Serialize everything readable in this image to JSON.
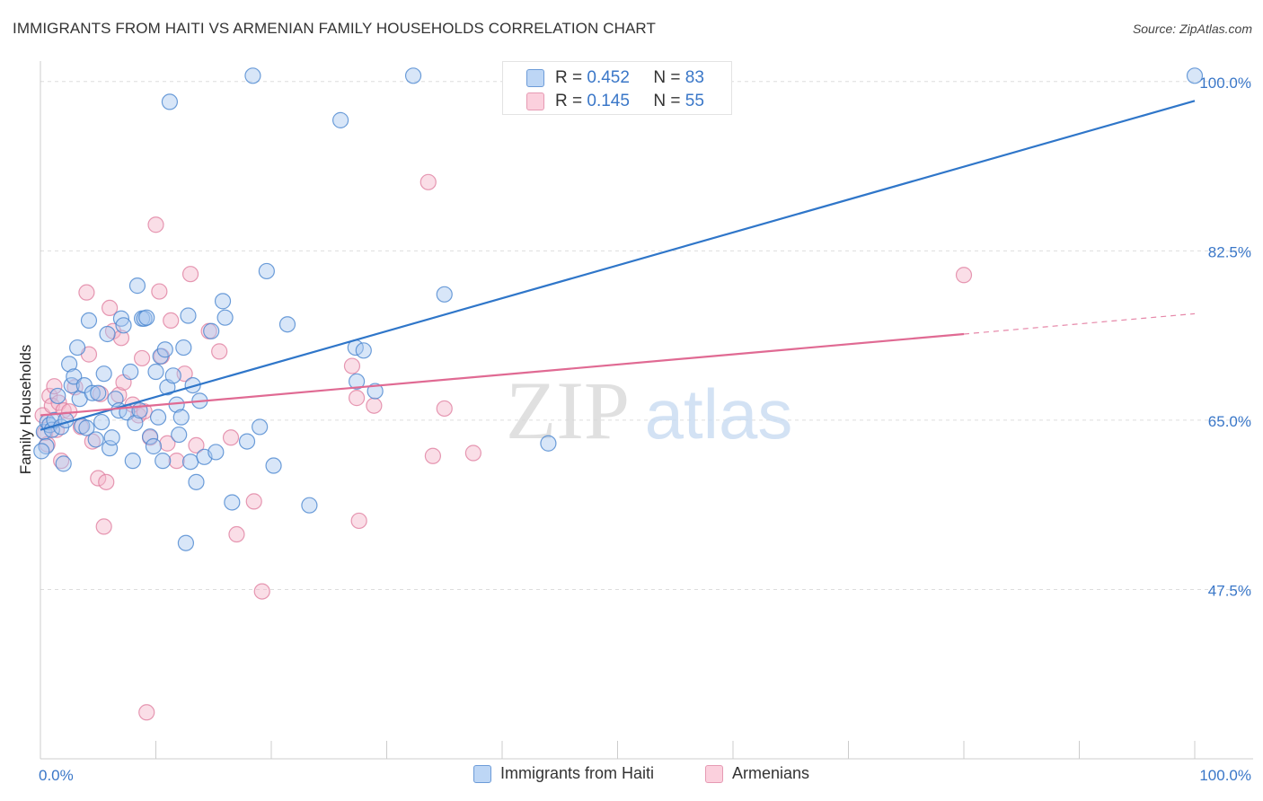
{
  "header": {
    "title": "IMMIGRANTS FROM HAITI VS ARMENIAN FAMILY HOUSEHOLDS CORRELATION CHART",
    "source": "Source: ZipAtlas.com"
  },
  "watermark": {
    "zip": "ZIP",
    "atlas": "atlas"
  },
  "legend": {
    "r_label": "R =",
    "n_label": "N =",
    "series": [
      {
        "r": "0.452",
        "n": "83"
      },
      {
        "r": "0.145",
        "n": "55"
      }
    ]
  },
  "colors": {
    "blue_fill": "#a8c8f0",
    "blue_stroke": "#4a86d0",
    "blue_line": "#2f76c9",
    "pink_fill": "#f5b6ca",
    "pink_stroke": "#e07fa0",
    "pink_line": "#e06a93",
    "grid": "#dddddd",
    "axis_text": "#3a77c8"
  },
  "chart_data": {
    "type": "scatter",
    "title": "IMMIGRANTS FROM HAITI VS ARMENIAN FAMILY HOUSEHOLDS CORRELATION CHART",
    "xlabel": "",
    "ylabel": "Family Households",
    "xlim": [
      0,
      100
    ],
    "ylim": [
      30,
      101
    ],
    "x_tick_labels": [
      "0.0%",
      "100.0%"
    ],
    "y_ticks": [
      47.5,
      65.0,
      82.5,
      100.0
    ],
    "y_tick_labels": [
      "47.5%",
      "65.0%",
      "82.5%",
      "100.0%"
    ],
    "legend_position": "bottom",
    "series": [
      {
        "name": "Immigrants from Haiti",
        "r": 0.452,
        "n": 83,
        "trend": {
          "x": [
            0,
            100
          ],
          "y": [
            64.0,
            98.0
          ],
          "solid_until": 100
        },
        "points": [
          [
            0.3,
            63.8
          ],
          [
            0.5,
            62.3
          ],
          [
            0.6,
            64.8
          ],
          [
            0.8,
            64.5
          ],
          [
            1.0,
            64.0
          ],
          [
            1.2,
            65.0
          ],
          [
            1.5,
            67.5
          ],
          [
            1.8,
            64.3
          ],
          [
            2.0,
            60.5
          ],
          [
            2.2,
            65.0
          ],
          [
            2.5,
            70.8
          ],
          [
            2.7,
            68.6
          ],
          [
            2.9,
            69.5
          ],
          [
            3.2,
            72.5
          ],
          [
            3.4,
            67.2
          ],
          [
            3.6,
            64.4
          ],
          [
            3.8,
            68.6
          ],
          [
            4.0,
            64.2
          ],
          [
            4.2,
            75.3
          ],
          [
            4.5,
            67.8
          ],
          [
            4.8,
            63.0
          ],
          [
            5.0,
            67.8
          ],
          [
            5.3,
            64.8
          ],
          [
            5.5,
            69.8
          ],
          [
            5.8,
            73.9
          ],
          [
            6.0,
            62.1
          ],
          [
            6.2,
            63.2
          ],
          [
            6.5,
            67.2
          ],
          [
            6.8,
            66.0
          ],
          [
            7.0,
            75.5
          ],
          [
            7.2,
            74.8
          ],
          [
            7.5,
            65.8
          ],
          [
            7.8,
            70.0
          ],
          [
            8.0,
            60.8
          ],
          [
            8.2,
            64.7
          ],
          [
            8.4,
            78.9
          ],
          [
            8.6,
            66.0
          ],
          [
            8.8,
            75.5
          ],
          [
            9.0,
            75.5
          ],
          [
            9.2,
            75.6
          ],
          [
            9.5,
            63.3
          ],
          [
            9.8,
            62.3
          ],
          [
            10.0,
            70.0
          ],
          [
            10.2,
            65.3
          ],
          [
            10.4,
            71.6
          ],
          [
            10.6,
            60.8
          ],
          [
            10.8,
            72.3
          ],
          [
            11.0,
            68.4
          ],
          [
            11.2,
            97.9
          ],
          [
            11.5,
            69.6
          ],
          [
            11.8,
            66.6
          ],
          [
            12.0,
            63.5
          ],
          [
            12.2,
            65.3
          ],
          [
            12.4,
            72.5
          ],
          [
            12.6,
            52.3
          ],
          [
            12.8,
            75.8
          ],
          [
            13.0,
            60.7
          ],
          [
            13.2,
            68.6
          ],
          [
            13.5,
            58.6
          ],
          [
            13.8,
            67.0
          ],
          [
            14.2,
            61.2
          ],
          [
            14.8,
            74.2
          ],
          [
            15.2,
            61.7
          ],
          [
            15.8,
            77.3
          ],
          [
            16.0,
            75.6
          ],
          [
            16.6,
            56.5
          ],
          [
            17.9,
            62.8
          ],
          [
            18.4,
            100.6
          ],
          [
            19.0,
            64.3
          ],
          [
            19.6,
            80.4
          ],
          [
            20.2,
            60.3
          ],
          [
            21.4,
            74.9
          ],
          [
            23.3,
            56.2
          ],
          [
            26.0,
            96.0
          ],
          [
            27.3,
            72.5
          ],
          [
            27.4,
            69.0
          ],
          [
            28.0,
            72.2
          ],
          [
            29.0,
            68.0
          ],
          [
            32.3,
            100.6
          ],
          [
            35.0,
            78.0
          ],
          [
            44.0,
            62.6
          ],
          [
            100.0,
            100.6
          ],
          [
            0.1,
            61.8
          ]
        ]
      },
      {
        "name": "Armenians",
        "r": 0.145,
        "n": 55,
        "trend": {
          "x": [
            0,
            80
          ],
          "y": [
            65.5,
            73.9
          ],
          "dashed_to": {
            "x": 100,
            "y": 76.0
          }
        },
        "points": [
          [
            0.2,
            65.5
          ],
          [
            0.4,
            63.7
          ],
          [
            0.6,
            62.5
          ],
          [
            0.8,
            67.5
          ],
          [
            1.0,
            66.5
          ],
          [
            1.2,
            68.5
          ],
          [
            1.4,
            64.0
          ],
          [
            1.6,
            66.8
          ],
          [
            1.8,
            60.8
          ],
          [
            2.0,
            66.0
          ],
          [
            2.5,
            65.9
          ],
          [
            3.0,
            68.4
          ],
          [
            3.5,
            64.3
          ],
          [
            4.0,
            78.2
          ],
          [
            4.2,
            71.8
          ],
          [
            4.5,
            62.8
          ],
          [
            5.0,
            59.0
          ],
          [
            5.2,
            67.7
          ],
          [
            5.5,
            54.0
          ],
          [
            5.7,
            58.6
          ],
          [
            6.0,
            76.6
          ],
          [
            6.3,
            74.2
          ],
          [
            6.8,
            67.6
          ],
          [
            7.0,
            73.5
          ],
          [
            7.2,
            68.9
          ],
          [
            8.0,
            66.6
          ],
          [
            8.5,
            65.5
          ],
          [
            8.8,
            71.4
          ],
          [
            9.0,
            65.9
          ],
          [
            9.2,
            34.8
          ],
          [
            9.5,
            63.2
          ],
          [
            10.0,
            85.2
          ],
          [
            10.3,
            78.3
          ],
          [
            10.5,
            71.6
          ],
          [
            11.0,
            62.6
          ],
          [
            11.3,
            75.3
          ],
          [
            11.8,
            60.8
          ],
          [
            12.5,
            69.8
          ],
          [
            13.0,
            80.1
          ],
          [
            13.5,
            62.4
          ],
          [
            14.6,
            74.2
          ],
          [
            15.5,
            72.1
          ],
          [
            16.5,
            63.2
          ],
          [
            17.0,
            53.2
          ],
          [
            18.5,
            56.6
          ],
          [
            19.2,
            47.3
          ],
          [
            27.0,
            70.6
          ],
          [
            27.4,
            67.3
          ],
          [
            27.6,
            54.6
          ],
          [
            28.9,
            66.5
          ],
          [
            33.6,
            89.6
          ],
          [
            34.0,
            61.3
          ],
          [
            35.0,
            66.2
          ],
          [
            37.5,
            61.6
          ],
          [
            80.0,
            80.0
          ]
        ]
      }
    ]
  }
}
